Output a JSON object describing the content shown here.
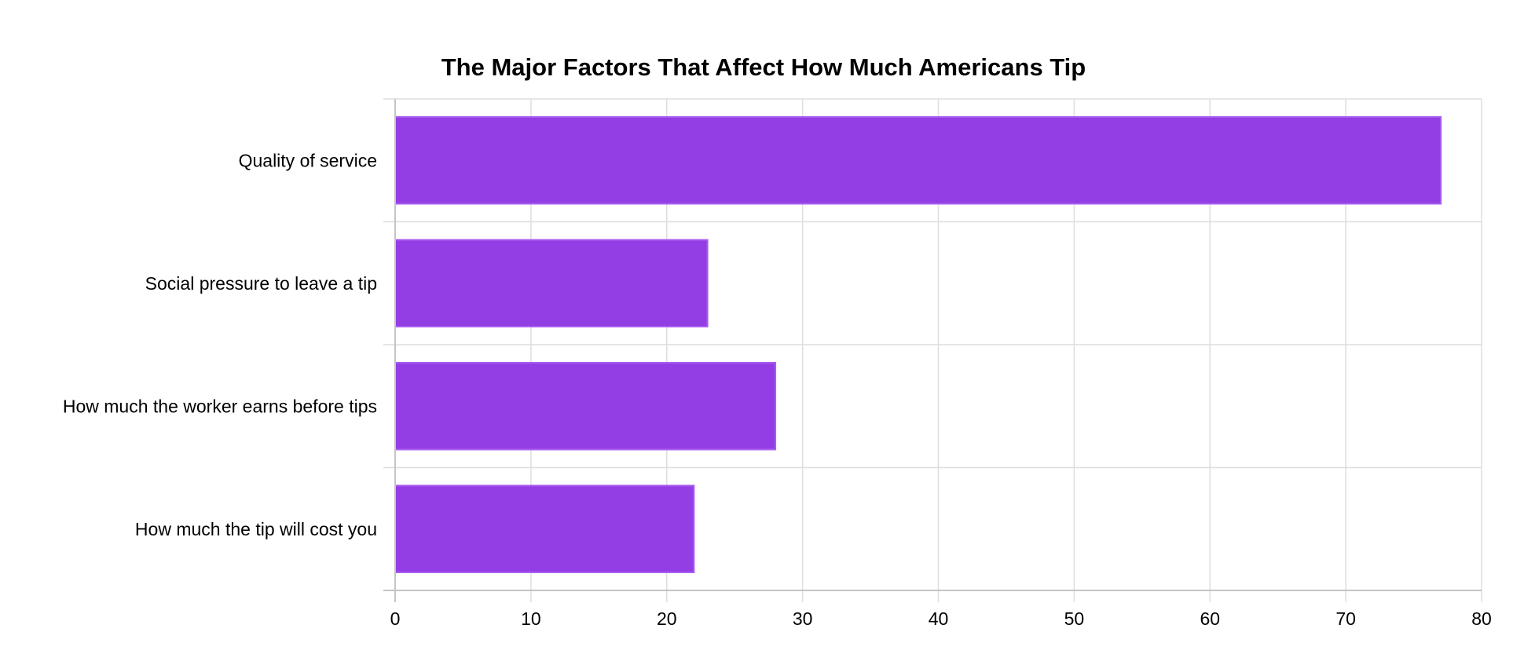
{
  "chart_data": {
    "type": "bar",
    "orientation": "horizontal",
    "title": "The Major Factors That Affect How Much Americans Tip",
    "xlabel": "",
    "ylabel": "",
    "categories": [
      "Quality of service",
      "Social pressure to leave a tip",
      "How much the worker earns before tips",
      "How much the tip will cost you"
    ],
    "values": [
      77,
      23,
      28,
      22
    ],
    "xlim": [
      0,
      80
    ],
    "x_ticks": [
      0,
      10,
      20,
      30,
      40,
      50,
      60,
      70,
      80
    ],
    "grid": true,
    "legend": "none",
    "colors": {
      "bar_fill": "#933ee4",
      "bar_stroke": "#a95cf0",
      "grid": "#dedede",
      "axis": "#c4c4c4",
      "text": "#000000"
    }
  }
}
